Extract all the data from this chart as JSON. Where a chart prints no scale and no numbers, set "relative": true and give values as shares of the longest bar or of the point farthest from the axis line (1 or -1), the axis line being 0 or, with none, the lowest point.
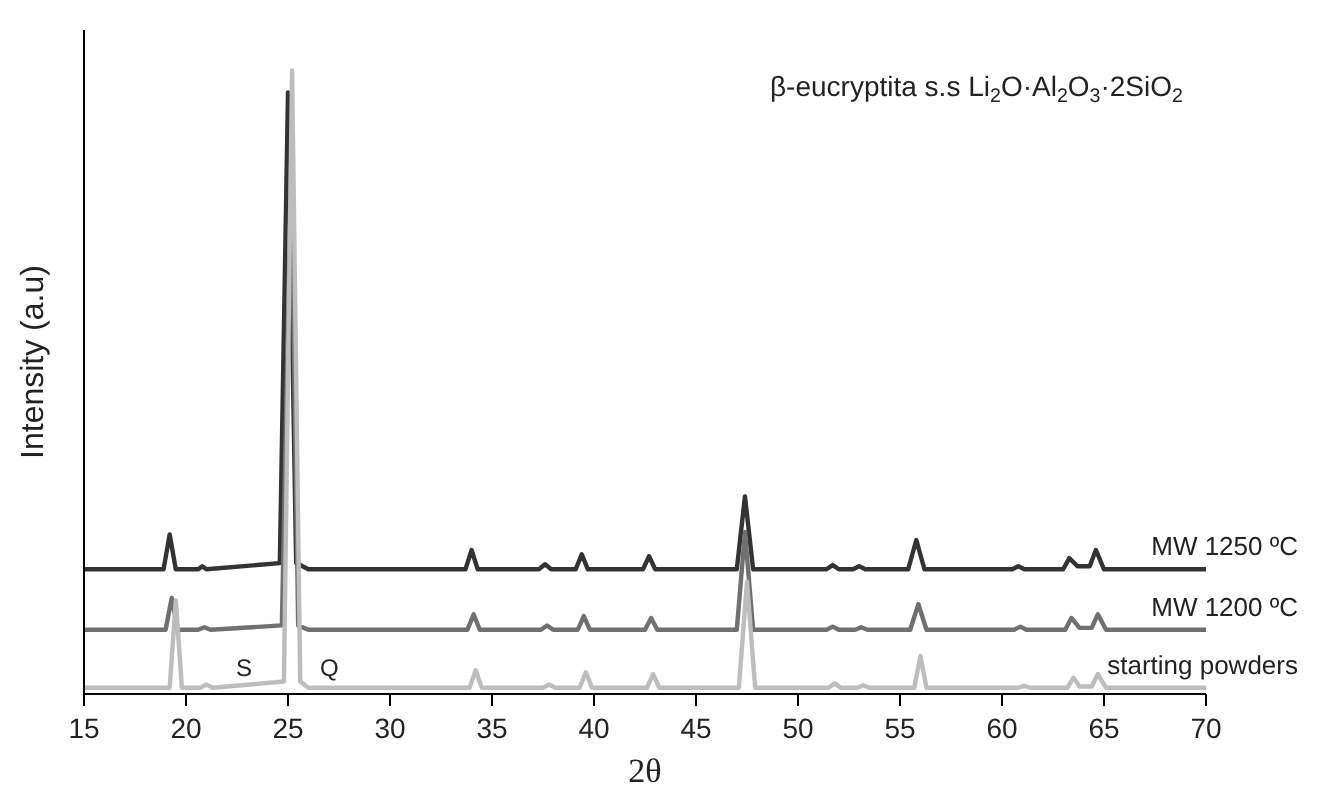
{
  "chart_data": {
    "type": "line",
    "relative": true,
    "xlabel": "2θ",
    "ylabel": "Intensity (a.u)",
    "xlim": [
      15,
      70
    ],
    "xticks": [
      15,
      20,
      25,
      30,
      35,
      40,
      45,
      50,
      55,
      60,
      65,
      70
    ],
    "tick_labels": "x",
    "grid": false,
    "legend": false,
    "marker": "none",
    "line_style": "solid",
    "annotations": [
      "β-eucryptita s.s Li$_{2}$O·Al$_{2}$O$_{3}$·2SiO$_{2}$",
      "S",
      "Q"
    ],
    "series": [
      {
        "name": "MW 1250 ºC",
        "color": "#333333",
        "x": [
          15,
          18.9,
          19.2,
          19.5,
          20.6,
          20.8,
          21,
          24.6,
          25.0,
          25.4,
          26,
          33.7,
          34.0,
          34.3,
          37.3,
          37.6,
          37.9,
          39.1,
          39.4,
          39.7,
          42.4,
          42.7,
          43,
          47.0,
          47.4,
          47.8,
          51.4,
          51.7,
          52,
          52.7,
          53,
          53.3,
          55.4,
          55.8,
          56.2,
          60.5,
          60.8,
          61.1,
          63.0,
          63.3,
          63.7,
          64.3,
          64.6,
          65.0,
          70
        ],
        "values": [
          0.2,
          0.2,
          0.256,
          0.2,
          0.2,
          0.205,
          0.2,
          0.21,
          0.965,
          0.21,
          0.2,
          0.2,
          0.231,
          0.2,
          0.2,
          0.208,
          0.2,
          0.2,
          0.224,
          0.2,
          0.2,
          0.221,
          0.2,
          0.2,
          0.317,
          0.2,
          0.2,
          0.207,
          0.2,
          0.2,
          0.205,
          0.2,
          0.2,
          0.247,
          0.2,
          0.2,
          0.205,
          0.2,
          0.2,
          0.218,
          0.205,
          0.205,
          0.231,
          0.2,
          0.2
        ]
      },
      {
        "name": "MW 1200 ºC",
        "color": "#707070",
        "x": [
          15,
          19.0,
          19.3,
          19.6,
          20.6,
          20.9,
          21.2,
          24.7,
          25.15,
          25.5,
          26,
          33.8,
          34.1,
          34.4,
          37.4,
          37.7,
          38,
          39.2,
          39.5,
          39.8,
          42.5,
          42.8,
          43.1,
          47.0,
          47.4,
          47.8,
          51.4,
          51.7,
          52,
          52.8,
          53.1,
          53.4,
          55.5,
          55.9,
          56.3,
          60.6,
          60.9,
          61.2,
          63.1,
          63.4,
          63.8,
          64.4,
          64.7,
          65.1,
          70
        ],
        "values": [
          0.103,
          0.103,
          0.154,
          0.103,
          0.103,
          0.107,
          0.103,
          0.11,
          0.85,
          0.11,
          0.103,
          0.103,
          0.128,
          0.103,
          0.103,
          0.11,
          0.103,
          0.103,
          0.125,
          0.103,
          0.103,
          0.122,
          0.103,
          0.103,
          0.26,
          0.103,
          0.103,
          0.108,
          0.103,
          0.103,
          0.107,
          0.103,
          0.103,
          0.144,
          0.103,
          0.103,
          0.108,
          0.103,
          0.103,
          0.122,
          0.106,
          0.106,
          0.128,
          0.103,
          0.103
        ]
      },
      {
        "name": "starting powders",
        "color": "#bdbdbd",
        "x": [
          15,
          19.2,
          19.5,
          19.8,
          20.7,
          21.0,
          21.3,
          24.8,
          25.2,
          25.6,
          26,
          33.9,
          34.2,
          34.5,
          37.5,
          37.8,
          38.1,
          39.3,
          39.6,
          39.9,
          42.6,
          42.9,
          43.2,
          47.1,
          47.5,
          47.9,
          51.5,
          51.8,
          52.1,
          52.9,
          53.2,
          53.5,
          55.7,
          56.0,
          56.3,
          60.8,
          61.1,
          61.4,
          63.2,
          63.5,
          63.8,
          64.4,
          64.7,
          65.1,
          70
        ],
        "values": [
          0.01,
          0.01,
          0.15,
          0.01,
          0.01,
          0.015,
          0.01,
          0.02,
          1,
          0.02,
          0.01,
          0.01,
          0.038,
          0.01,
          0.01,
          0.015,
          0.01,
          0.01,
          0.035,
          0.01,
          0.01,
          0.032,
          0.01,
          0.01,
          0.18,
          0.01,
          0.01,
          0.017,
          0.01,
          0.01,
          0.014,
          0.01,
          0.01,
          0.061,
          0.01,
          0.01,
          0.013,
          0.01,
          0.01,
          0.026,
          0.012,
          0.012,
          0.032,
          0.01,
          0.01
        ]
      }
    ]
  }
}
